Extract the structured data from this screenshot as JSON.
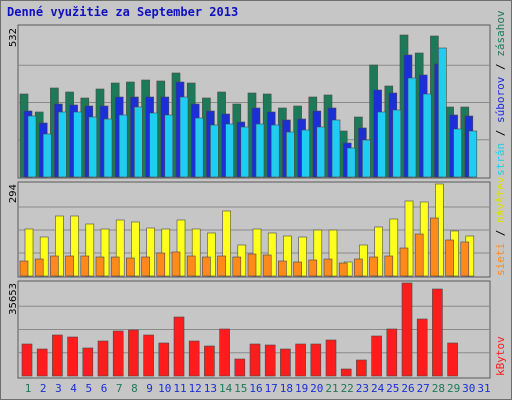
{
  "chart_data": {
    "type": "bar",
    "title": "Denné využitie za September 2013",
    "categories": [
      "1",
      "2",
      "3",
      "4",
      "5",
      "6",
      "7",
      "8",
      "9",
      "10",
      "11",
      "12",
      "13",
      "14",
      "15",
      "16",
      "17",
      "18",
      "19",
      "20",
      "21",
      "22",
      "23",
      "24",
      "25",
      "26",
      "27",
      "28",
      "29",
      "30",
      "31"
    ],
    "weekend_days": [
      "1",
      "7",
      "8",
      "14",
      "15",
      "21",
      "22",
      "28",
      "29"
    ],
    "panels": [
      {
        "id": "traffic",
        "ymax_label": "532",
        "ylim": [
          0,
          532
        ],
        "series": [
          {
            "name": "zásahov",
            "color": "#1c7a58",
            "values": [
              298,
              231,
              318,
              305,
              282,
              314,
              336,
              340,
              347,
              343,
              371,
              336,
              281,
              302,
              260,
              300,
              298,
              246,
              254,
              286,
              293,
              165,
              214,
              401,
              324,
              507,
              444,
              504,
              249,
              249,
              null
            ]
          },
          {
            "name": "súborov",
            "color": "#1a2fd6",
            "values": [
              236,
              192,
              259,
              257,
              254,
              254,
              286,
              286,
              285,
              287,
              338,
              261,
              234,
              224,
              197,
              245,
              233,
              203,
              206,
              236,
              245,
              123,
              174,
              311,
              300,
              434,
              364,
              402,
              221,
              219,
              null
            ]
          },
          {
            "name": "strán",
            "color": "#1ecdf0",
            "values": [
              219,
              153,
              232,
              232,
              215,
              208,
              222,
              250,
              230,
              223,
              286,
              211,
              186,
              190,
              179,
              191,
              185,
              161,
              168,
              180,
              204,
              105,
              131,
              232,
              240,
              354,
              297,
              460,
              170,
              164,
              null
            ]
          }
        ]
      },
      {
        "id": "visits",
        "ymax_label": "294",
        "ylim": [
          0,
          294
        ],
        "series": [
          {
            "name": "návštev",
            "color": "#ffff1c",
            "values": [
              150,
              126,
              193,
              193,
              165,
              150,
              180,
              172,
              152,
              149,
              179,
              150,
              137,
              207,
              98,
              149,
              137,
              129,
              126,
              146,
              146,
              44,
              98,
              158,
              181,
              241,
              238,
              294,
              143,
              128,
              null
            ]
          },
          {
            "name": "sieti",
            "color": "#ff8a1c",
            "values": [
              49,
              53,
              63,
              65,
              64,
              60,
              60,
              56,
              61,
              72,
              78,
              63,
              62,
              63,
              62,
              69,
              67,
              49,
              46,
              51,
              55,
              41,
              54,
              60,
              64,
              91,
              135,
              184,
              114,
              108,
              null
            ]
          }
        ]
      },
      {
        "id": "kbytes",
        "ymax_label": "35653",
        "ylim": [
          0,
          35653
        ],
        "series": [
          {
            "name": "kBytov",
            "color": "#ff1c1c",
            "values": [
              12400,
              10200,
              15600,
              15100,
              10800,
              13400,
              17300,
              17500,
              15700,
              12800,
              22800,
              13400,
              11600,
              18000,
              6500,
              12400,
              11800,
              10300,
              12300,
              12100,
              13700,
              2600,
              6200,
              15300,
              17900,
              35653,
              21900,
              33400,
              12700,
              null,
              null
            ]
          }
        ]
      }
    ],
    "legend_sep": " / "
  }
}
